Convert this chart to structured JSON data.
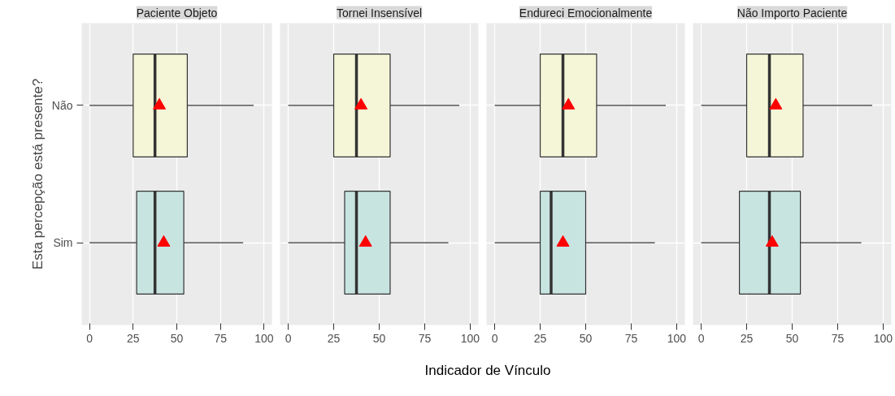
{
  "chart_data": [
    {
      "type": "box",
      "orientation": "horizontal",
      "title": "Paciente Objeto",
      "ylabel": "Esta percepção está presente?",
      "categories": [
        "Não",
        "Sim"
      ],
      "colors": [
        "#f5f6d8",
        "#c8e4e1"
      ],
      "marker": "triangle",
      "grid": true,
      "xlim": [
        -4.5,
        104.5
      ],
      "xticks": [
        0,
        25,
        50,
        75,
        100
      ],
      "boxes": [
        {
          "low": 0,
          "q1": 25,
          "median": 37.5,
          "q3": 56,
          "high": 94,
          "mean": 40
        },
        {
          "low": 0,
          "q1": 27,
          "median": 37.5,
          "q3": 54,
          "high": 88,
          "mean": 42.5
        }
      ]
    },
    {
      "type": "box",
      "orientation": "horizontal",
      "title": "Tornei Insensível",
      "xlabel": "Indicador de Vínculo",
      "categories": [
        null,
        null
      ],
      "colors": [
        "#f5f6d8",
        "#c8e4e1"
      ],
      "marker": "triangle",
      "grid": true,
      "tick_labels": "x",
      "xlim": [
        -4.5,
        104.5
      ],
      "xticks": [
        0,
        25,
        50,
        75,
        100
      ],
      "boxes": [
        {
          "low": 0,
          "q1": 25,
          "median": 37.5,
          "q3": 56,
          "high": 94,
          "mean": 40
        },
        {
          "low": 0,
          "q1": 31,
          "median": 37.5,
          "q3": 56,
          "high": 88,
          "mean": 42.5
        }
      ]
    },
    {
      "type": "box",
      "orientation": "horizontal",
      "title": "Endureci Emocionalmente",
      "categories": [
        null,
        null
      ],
      "colors": [
        "#f5f6d8",
        "#c8e4e1"
      ],
      "marker": "triangle",
      "grid": true,
      "tick_labels": "x",
      "xlim": [
        -4.5,
        104.5
      ],
      "xticks": [
        0,
        25,
        50,
        75,
        100
      ],
      "boxes": [
        {
          "low": 0,
          "q1": 25,
          "median": 37.5,
          "q3": 56,
          "high": 94,
          "mean": 40.5
        },
        {
          "low": 0,
          "q1": 25,
          "median": 31,
          "q3": 50,
          "high": 88,
          "mean": 37.5
        }
      ]
    },
    {
      "type": "box",
      "orientation": "horizontal",
      "title": "Não Importo Paciente",
      "categories": [
        null,
        null
      ],
      "colors": [
        "#f5f6d8",
        "#c8e4e1"
      ],
      "marker": "triangle",
      "grid": true,
      "tick_labels": "x",
      "xlim": [
        -4.5,
        104.5
      ],
      "xticks": [
        0,
        25,
        50,
        75,
        100
      ],
      "boxes": [
        {
          "low": 0,
          "q1": 25,
          "median": 37.5,
          "q3": 56,
          "high": 94,
          "mean": 41
        },
        {
          "low": 0,
          "q1": 21,
          "median": 37.5,
          "q3": 54.5,
          "high": 88,
          "mean": 39
        }
      ]
    }
  ]
}
